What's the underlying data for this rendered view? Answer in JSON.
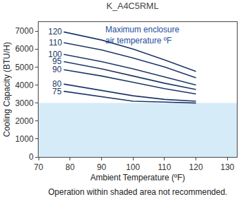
{
  "chart_data": {
    "type": "line",
    "title": "K_A4C5RML",
    "x_label": "Ambient Temperature (ºF)",
    "y_label": "Cooling Capacity (BTU/H)",
    "annotation": "Maximum enclosure\nair temperature ºF",
    "note": "Operation within shaded area not recommended.",
    "not_recommended_below": 3000,
    "x": [
      78,
      90,
      100,
      110,
      120
    ],
    "series": [
      {
        "name": "120",
        "color": "#1b3766",
        "values": [
          6950,
          6500,
          6000,
          5400,
          4750
        ]
      },
      {
        "name": "110",
        "color": "#1b3766",
        "values": [
          6350,
          5950,
          5500,
          5000,
          4400
        ]
      },
      {
        "name": "100",
        "color": "#1b3766",
        "values": [
          5700,
          5300,
          4900,
          4450,
          4000
        ]
      },
      {
        "name": "95",
        "color": "#1b3766",
        "values": [
          5300,
          4900,
          4500,
          4100,
          3750
        ]
      },
      {
        "name": "90",
        "color": "#1b3766",
        "values": [
          4850,
          4500,
          4150,
          3800,
          3500
        ]
      },
      {
        "name": "80",
        "color": "#1b3766",
        "values": [
          4050,
          3700,
          3400,
          3200,
          3100
        ]
      },
      {
        "name": "75",
        "color": "#1b3766",
        "values": [
          3650,
          3350,
          3100,
          3050,
          3000
        ]
      }
    ],
    "xlim": [
      70,
      133
    ],
    "xticks": [
      70,
      80,
      90,
      100,
      110,
      120,
      130
    ],
    "ylim": [
      0,
      7500
    ],
    "yticks": [
      0,
      1000,
      2000,
      3000,
      4000,
      5000,
      6000,
      7000
    ],
    "grid": false
  }
}
